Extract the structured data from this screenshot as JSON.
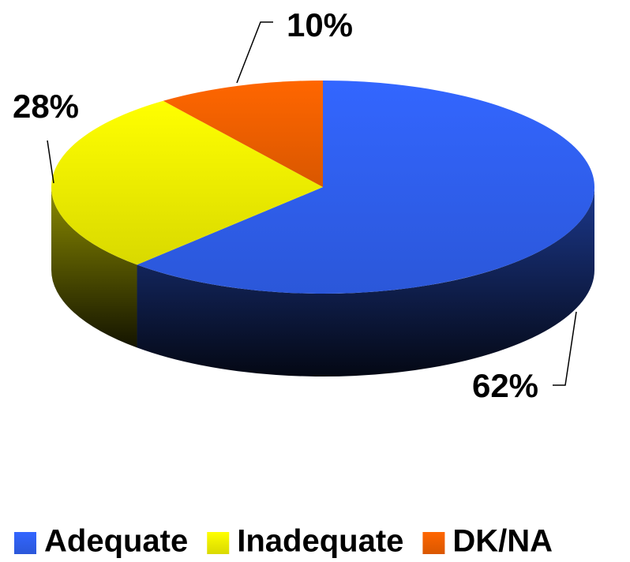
{
  "chart_data": {
    "type": "pie",
    "categories": [
      "Adequate",
      "Inadequate",
      "DK/NA"
    ],
    "values": [
      62,
      28,
      10
    ],
    "value_labels": [
      "62%",
      "28%",
      "10%"
    ],
    "colors": [
      "#3366ff",
      "#ffff00",
      "#ff6600"
    ],
    "legend": "bottom"
  }
}
